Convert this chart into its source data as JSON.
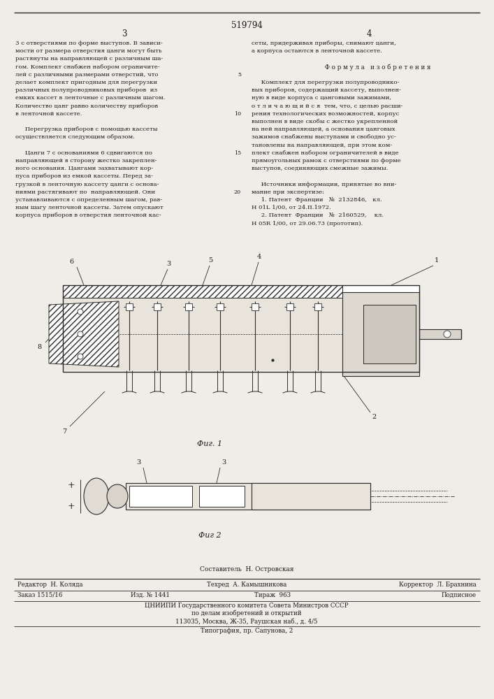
{
  "patent_number": "519794",
  "page_numbers": [
    "3",
    "4"
  ],
  "background_color": "#f0ede8",
  "text_color": "#1a1a1a",
  "line_color": "#2a2a2a",
  "left_column_text": [
    "3 с отверстиями по форме выступов. В зависи-",
    "мости от размера отверстия цанги могут быть",
    "растянуты на направляющей с различным ша-",
    "гом. Комплект снабжен набором ограничите-",
    "лей с различными размерами отверстий, что",
    "делает комплект пригодным для перегрузки",
    "различных полупроводниковых приборов  из",
    "емких кассет в ленточные с различным шагом.",
    "Количество цанг равно количеству приборов",
    "в ленточной кассете.",
    "",
    "     Перегрузка приборов с помощью кассеты",
    "осуществляется следующим образом.",
    "",
    "     Цанги 7 с основаниями 6 сдвигаются по",
    "направляющей в сторону жестко закреплен-",
    "ного основания. Цангами захватывают кор-",
    "пуса приборов из емкой кассеты. Перед за-",
    "грузкой в ленточную кассету цанги с основа-",
    "ниями растягивают по  направляющей. Они",
    "устанавливаются с определенным шагом, рав-",
    "ным шагу ленточной кассеты. Затем опускают",
    "корпуса приборов в отверстия ленточной кас-"
  ],
  "right_column_text": [
    "сеты, придерживая приборы, снимают цанги,",
    "а корпуса остаются в ленточной кассете.",
    "",
    "         Ф о р м у л а   и з о б р е т е н и я",
    "",
    "     Комплект для перегрузки полупроводнико-",
    "вых приборов, содержащий кассету, выполнен-",
    "ную в виде корпуса с цанговыми зажимами,",
    "о т л и ч а ю щ и й с я  тем, что, с целью расши-",
    "рения технологических возможностей, корпус",
    "выполнен в виде скобы с жестко укрепленной",
    "на ней направляющей, а основания цанговых",
    "зажимов снабжены выступами и свободно ус-",
    "тановлены на направляющей, при этом ком-",
    "плект снабжен набором ограничителей в виде",
    "прямоугольных рамок с отверстиями по форме",
    "выступов, соединяющих смежные зажимы.",
    "",
    "     Источники информации, принятые во вни-",
    "мание при экспертизе:",
    "     1. Патент  Франции   №  2132846,   кл.",
    "Н 01L 1/00, от 24.II.1972.",
    "     2. Патент  Франции   №  2160529,    кл.",
    "Н 05R 1/00, от 29.06.73 (прототип)."
  ],
  "fig1_caption": "Фиг. 1",
  "fig2_caption": "Фиг 2",
  "footer_sestavitel": "Составитель  Н. Островская",
  "footer_redaktor": "Редактор  Н. Коляда",
  "footer_tehred": "Техред  А. Камышникова",
  "footer_korrektor": "Корректор  Л. Брахнина",
  "footer_zakaz": "Заказ 1515/16",
  "footer_izd": "Изд. № 1441",
  "footer_tirazh": "Тираж  963",
  "footer_podpisnoe": "Подписное",
  "footer_cniip1": "ЦНИИПИ Государственного комитета Совета Министров СССР",
  "footer_cniip2": "по делам изобретений и открытий",
  "footer_cniip3": "113035, Москва, Ж-35, Раушская наб., д. 4/5",
  "footer_tipografia": "Типография, пр. Сапунова, 2"
}
